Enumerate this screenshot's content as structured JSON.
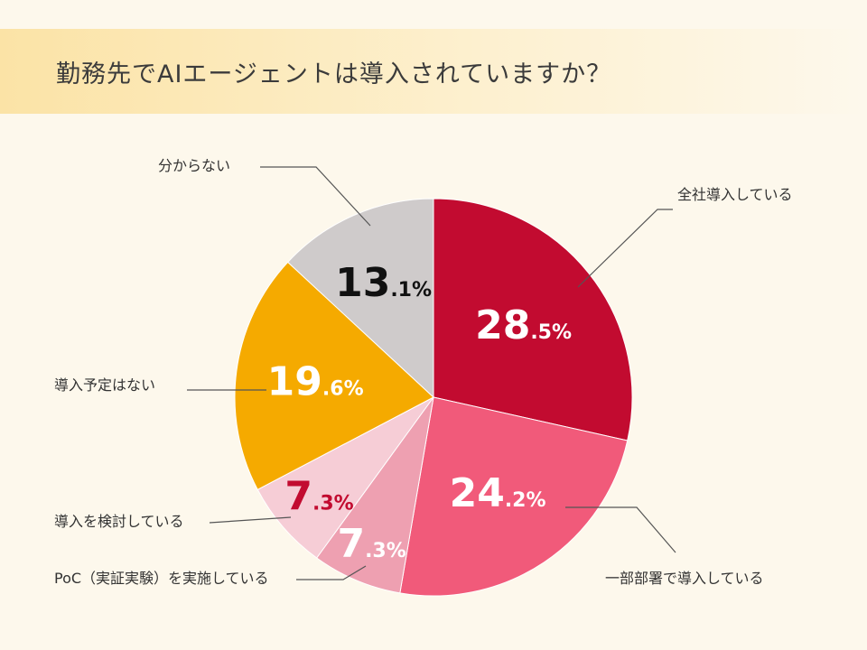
{
  "title": "勤務先でAIエージェントは導入されていますか？",
  "colors": {
    "background": "#fdf8ec",
    "title_band": "#fbe3a6",
    "leader_line": "#555555"
  },
  "chart_data": {
    "type": "pie",
    "title": "勤務先でAIエージェントは導入されていますか？",
    "start": "12 o'clock",
    "direction": "clockwise",
    "slices": [
      {
        "label": "全社導入している",
        "value": 28.5,
        "int": "28",
        "dec": ".5",
        "pct": "%",
        "color": "#c20b30",
        "text_color": "#ffffff"
      },
      {
        "label": "一部部署で導入している",
        "value": 24.2,
        "int": "24",
        "dec": ".2",
        "pct": "%",
        "color": "#f15a7a",
        "text_color": "#ffffff"
      },
      {
        "label": "PoC（実証実験）を実施している",
        "value": 7.3,
        "int": "7",
        "dec": ".3",
        "pct": "%",
        "color": "#eea0b1",
        "text_color": "#ffffff"
      },
      {
        "label": "導入を検討している",
        "value": 7.3,
        "int": "7",
        "dec": ".3",
        "pct": "%",
        "color": "#f6cdd6",
        "text_color": "#c20b30"
      },
      {
        "label": "導入予定はない",
        "value": 19.6,
        "int": "19",
        "dec": ".6",
        "pct": "%",
        "color": "#f5aa00",
        "text_color": "#ffffff"
      },
      {
        "label": "分からない",
        "value": 13.1,
        "int": "13",
        "dec": ".1",
        "pct": "%",
        "color": "#cfcbcb",
        "text_color": "#111111"
      }
    ]
  }
}
